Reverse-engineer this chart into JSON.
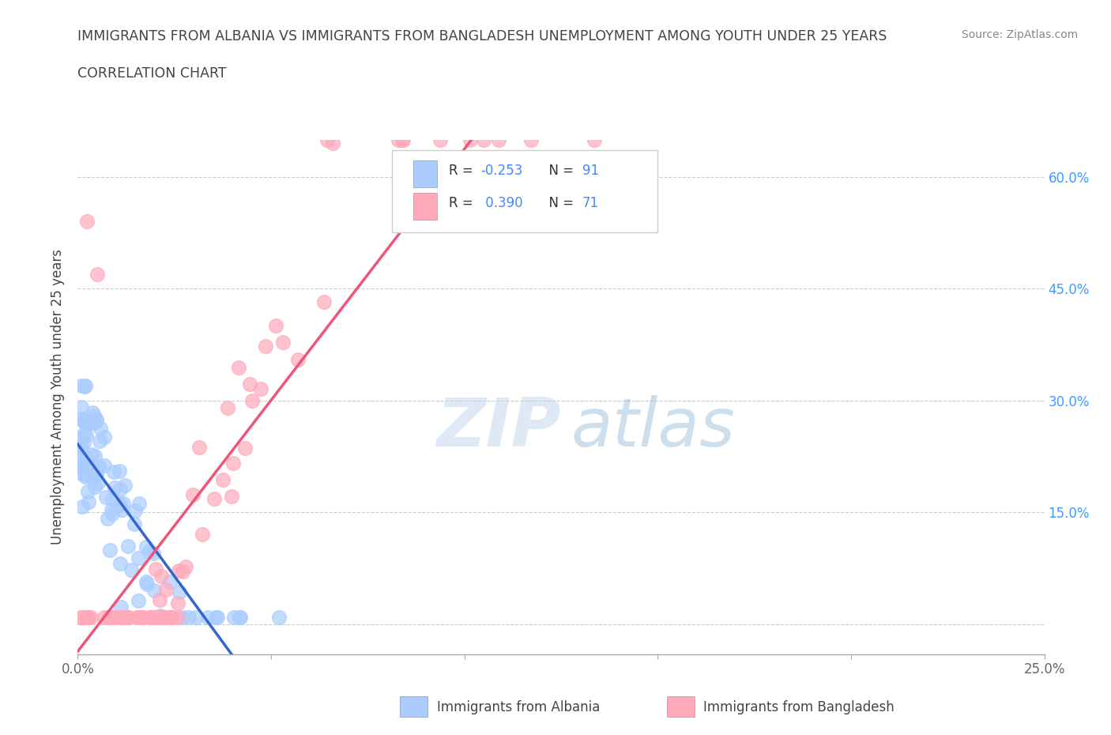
{
  "title_line1": "IMMIGRANTS FROM ALBANIA VS IMMIGRANTS FROM BANGLADESH UNEMPLOYMENT AMONG YOUTH UNDER 25 YEARS",
  "title_line2": "CORRELATION CHART",
  "source": "Source: ZipAtlas.com",
  "ylabel": "Unemployment Among Youth under 25 years",
  "xlim": [
    0.0,
    0.25
  ],
  "ylim": [
    -0.04,
    0.65
  ],
  "albania_color": "#aaccff",
  "bangladesh_color": "#ffaabb",
  "albania_R": -0.253,
  "albania_N": 91,
  "bangladesh_R": 0.39,
  "bangladesh_N": 71,
  "trend_albania_solid_color": "#3366cc",
  "trend_albania_dash_color": "#7799cc",
  "trend_bangladesh_color": "#ee5577",
  "background_color": "#ffffff",
  "grid_color": "#cccccc",
  "title_color": "#444444",
  "right_tick_color": "#4499ff",
  "legend_text_color": "#333333",
  "source_color": "#888888"
}
